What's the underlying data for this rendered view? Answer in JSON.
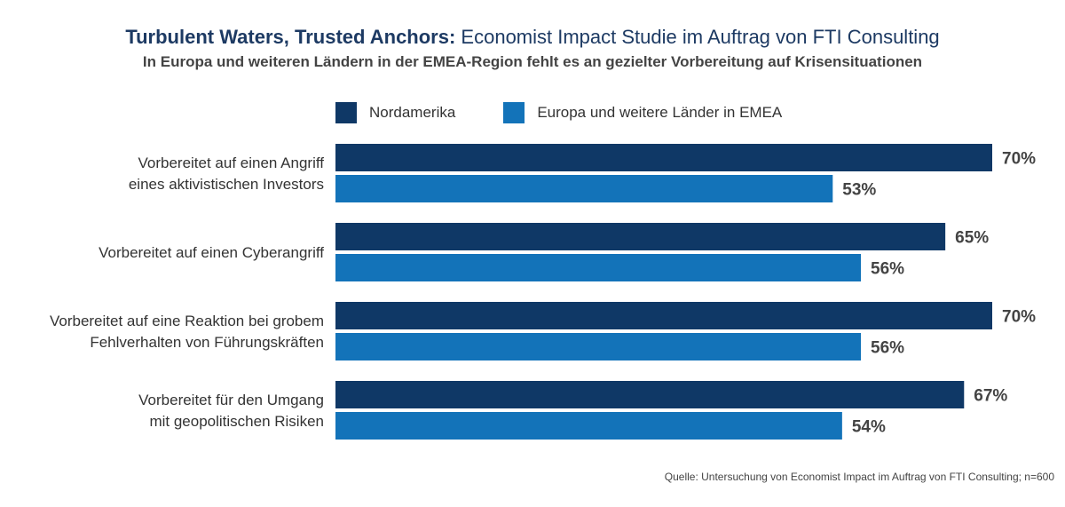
{
  "header": {
    "title_bold": "Turbulent Waters, Trusted Anchors:",
    "title_rest": " Economist Impact Studie im Auftrag von FTI Consulting",
    "subtitle": "In Europa und weiteren Ländern in der EMEA-Region fehlt es an gezielter Vorbereitung auf Krisensituationen"
  },
  "colors": {
    "title": "#1d3a63",
    "nordamerika": "#0f3866",
    "emea": "#1373b9"
  },
  "chart_data": {
    "type": "bar",
    "orientation": "horizontal",
    "categories": [
      [
        "Vorbereitet auf einen Angriff",
        "eines aktivistischen Investors"
      ],
      [
        "Vorbereitet auf einen Cyberangriff"
      ],
      [
        "Vorbereitet auf eine Reaktion bei grobem",
        "Fehlverhalten von Führungskräften"
      ],
      [
        "Vorbereitet für den Umgang",
        "mit geopolitischen Risiken"
      ]
    ],
    "series": [
      {
        "name": "Nordamerika",
        "values": [
          70,
          65,
          70,
          67
        ],
        "labels": [
          "70%",
          "65%",
          "70%",
          "67%"
        ]
      },
      {
        "name": "Europa und weitere Länder in EMEA",
        "values": [
          53,
          56,
          56,
          54
        ],
        "labels": [
          "53%",
          "56%",
          "56%",
          "54%"
        ]
      }
    ],
    "xlim": [
      0,
      70
    ],
    "legend_position": "top"
  },
  "source": "Quelle: Untersuchung von Economist Impact im Auftrag von FTI Consulting; n=600"
}
